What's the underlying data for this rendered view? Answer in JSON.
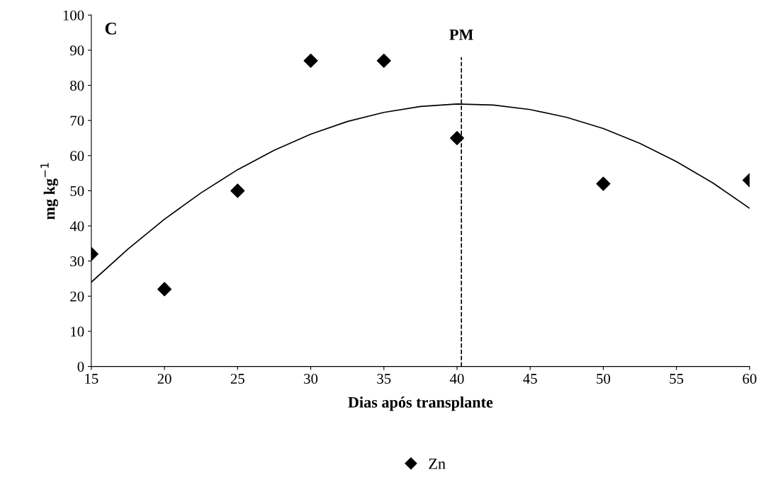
{
  "chart_data": {
    "type": "scatter",
    "xlabel": "Dias após transplante",
    "ylabel": "mg kg$^{−1}$",
    "annotations": [
      "C"
    ],
    "series": [
      {
        "name": "Zn",
        "color": "#000000",
        "marker": "diamond",
        "x": [
          15,
          20,
          25,
          30,
          35,
          40,
          50,
          60
        ],
        "values": [
          32,
          22,
          50,
          87,
          87,
          65,
          52,
          53
        ]
      },
      {
        "type": "line",
        "color": "#000000",
        "marker": "none",
        "line_style": "solid",
        "x": [
          15,
          17.5,
          20,
          22.5,
          25,
          27.5,
          30,
          32.5,
          35,
          37.5,
          40,
          42.5,
          45,
          47.5,
          50,
          52.5,
          55,
          57.5,
          60
        ],
        "values": [
          24.0,
          33.4,
          41.9,
          49.4,
          56.0,
          61.5,
          66.1,
          69.7,
          72.3,
          74.0,
          74.7,
          74.4,
          73.1,
          70.9,
          67.7,
          63.5,
          58.3,
          52.2,
          45.0
        ]
      }
    ],
    "ref_lines": [
      {
        "axis": "x",
        "value": 40.3,
        "label": "PM",
        "color": "#000000",
        "line_style": "dashed"
      }
    ],
    "xlim": [
      15,
      60
    ],
    "xticks": [
      15,
      20,
      25,
      30,
      35,
      40,
      45,
      50,
      55,
      60
    ],
    "ylim": [
      0,
      100
    ],
    "yticks": [
      0,
      10,
      20,
      30,
      40,
      50,
      60,
      70,
      80,
      90,
      100
    ],
    "grid": false,
    "legend": "bottom"
  }
}
